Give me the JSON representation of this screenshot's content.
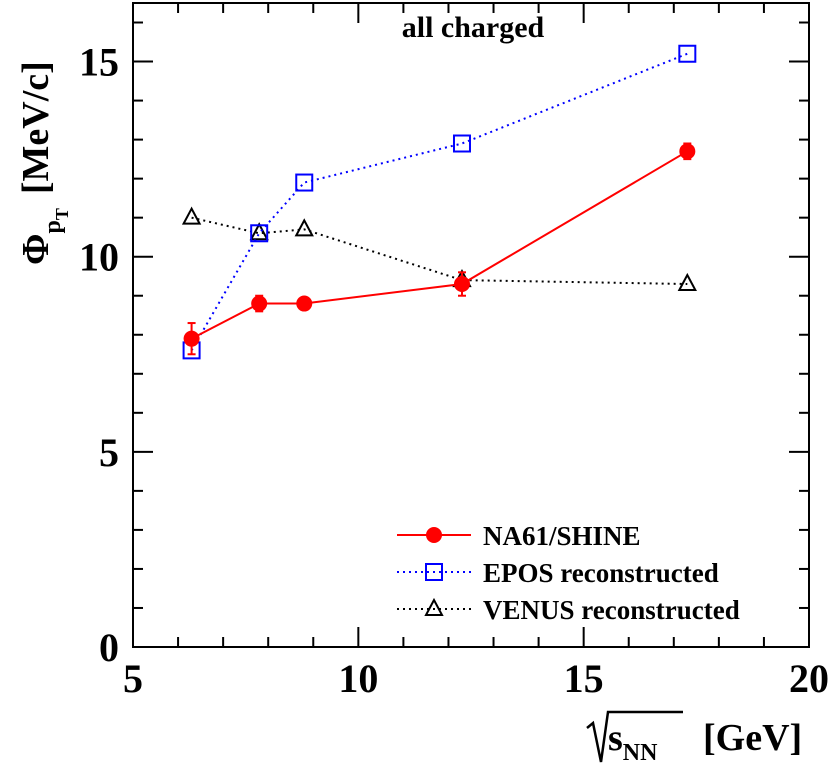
{
  "chart_data": {
    "type": "line",
    "title": "all charged",
    "xlabel_symbol": "s",
    "xlabel_subscript": "NN",
    "xlabel_unit": "[GeV]",
    "ylabel_symbol": "Φ",
    "ylabel_sub": "p",
    "ylabel_subsub": "T",
    "ylabel_unit": "[MeV/c]",
    "xlim": [
      5,
      20
    ],
    "ylim": [
      0,
      16.5
    ],
    "xticks": [
      5,
      10,
      15,
      20
    ],
    "yticks": [
      0,
      5,
      10,
      15
    ],
    "grid": false,
    "legend_position": "bottom-right",
    "series": [
      {
        "name": "NA61/SHINE",
        "color": "#ff0000",
        "marker": "filled-circle",
        "line": "solid",
        "x": [
          6.3,
          7.8,
          8.8,
          12.3,
          17.3
        ],
        "y": [
          7.9,
          8.8,
          8.8,
          9.3,
          12.7
        ],
        "yerr": [
          0.4,
          0.2,
          0.1,
          0.3,
          0.2
        ]
      },
      {
        "name": "EPOS reconstructed",
        "color": "#0000ff",
        "marker": "open-square",
        "line": "dotted",
        "x": [
          6.3,
          7.8,
          8.8,
          12.3,
          17.3
        ],
        "y": [
          7.6,
          10.6,
          11.9,
          12.9,
          15.2
        ]
      },
      {
        "name": "VENUS reconstructed",
        "color": "#000000",
        "marker": "open-triangle",
        "line": "dotted",
        "x": [
          6.3,
          7.8,
          8.8,
          12.3,
          17.3
        ],
        "y": [
          11.0,
          10.6,
          10.7,
          9.4,
          9.3
        ]
      }
    ]
  }
}
